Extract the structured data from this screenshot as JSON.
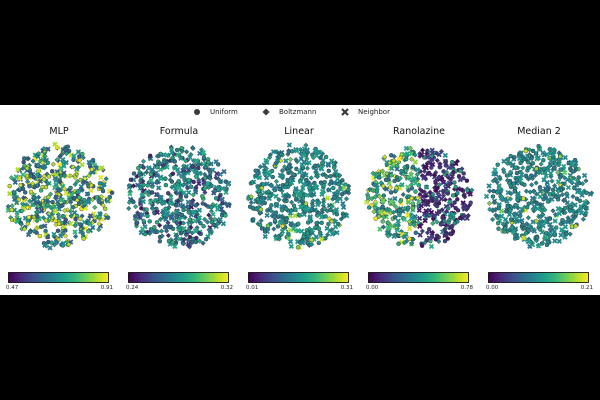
{
  "chart_data": {
    "type": "scatter",
    "colormap": "viridis",
    "legend": {
      "placement": "top-center",
      "items": [
        {
          "label": "Uniform",
          "marker": "circle-icon"
        },
        {
          "label": "Boltzmann",
          "marker": "diamond-icon"
        },
        {
          "label": "Neighbor",
          "marker": "x-mark-icon"
        }
      ]
    },
    "panels": [
      {
        "title": "MLP",
        "vmin": 0.47,
        "vmax": 0.91,
        "vmin_label": "0.47",
        "vmax_label": "0.91",
        "color_pattern": "mixed-high"
      },
      {
        "title": "Formula",
        "vmin": 0.24,
        "vmax": 0.32,
        "vmin_label": "0.24",
        "vmax_label": "0.32",
        "color_pattern": "mixed-low"
      },
      {
        "title": "Linear",
        "vmin": 0.01,
        "vmax": 0.31,
        "vmin_label": "0.01",
        "vmax_label": "0.31",
        "color_pattern": "uniform-mid"
      },
      {
        "title": "Ranolazine",
        "vmin": 0.0,
        "vmax": 0.78,
        "vmin_label": "0.00",
        "vmax_label": "0.78",
        "color_pattern": "split-right-low"
      },
      {
        "title": "Median 2",
        "vmin": 0.0,
        "vmax": 0.21,
        "vmin_label": "0.00",
        "vmax_label": "0.21",
        "color_pattern": "uniform-mid"
      }
    ]
  }
}
